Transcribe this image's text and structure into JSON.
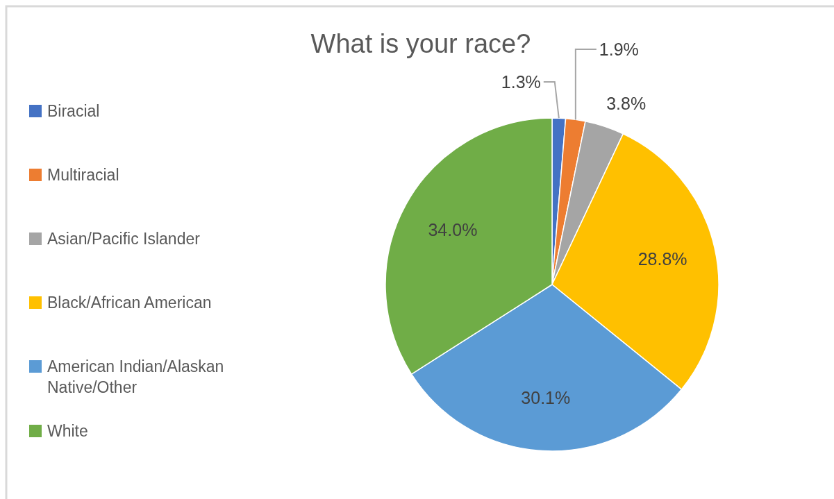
{
  "chart_data": {
    "type": "pie",
    "title": "What is your race?",
    "categories": [
      "Biracial",
      "Multiracial",
      "Asian/Pacific Islander",
      "Black/African American",
      "American Indian/Alaskan Native/Other",
      "White"
    ],
    "values": [
      1.3,
      1.9,
      3.8,
      28.8,
      30.1,
      34.0
    ],
    "value_labels": [
      "1.3%",
      "1.9%",
      "3.8%",
      "28.8%",
      "30.1%",
      "34.0%"
    ],
    "colors": [
      "#4472c4",
      "#ed7d31",
      "#a5a5a5",
      "#ffc000",
      "#5b9bd5",
      "#70ad47"
    ],
    "legend": "left"
  }
}
